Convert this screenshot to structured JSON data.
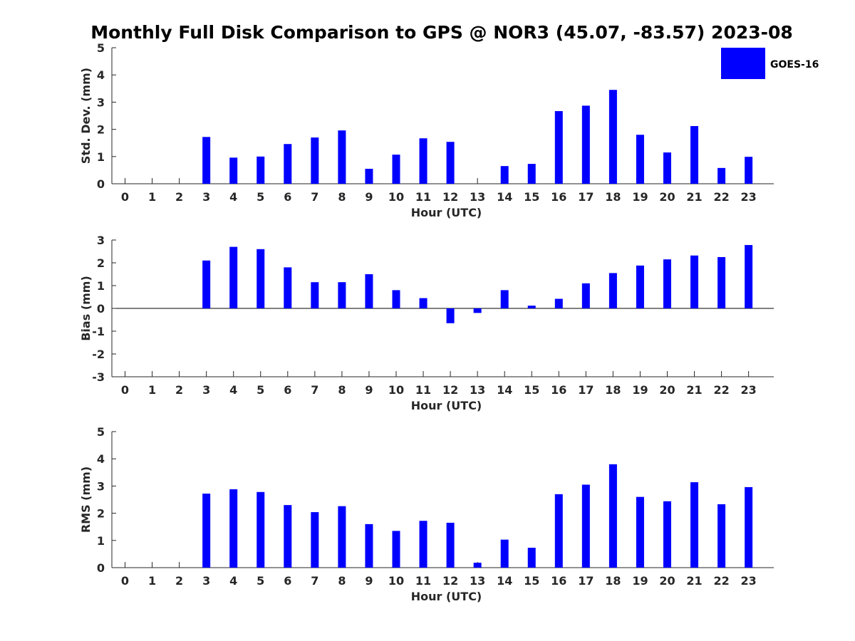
{
  "figure": {
    "title": "Monthly Full Disk Comparison to GPS @ NOR3 (45.07, -83.57) 2023-08"
  },
  "legend": {
    "label": "GOES-16",
    "color": "#0000ff",
    "position": "top-right"
  },
  "chart_data": [
    {
      "type": "bar",
      "name": "std-dev",
      "xlabel": "Hour (UTC)",
      "ylabel": "Std. Dev. (mm)",
      "ylim": [
        0,
        5
      ],
      "yticks": [
        0,
        1,
        2,
        3,
        4,
        5
      ],
      "categories": [
        "0",
        "1",
        "2",
        "3",
        "4",
        "5",
        "6",
        "7",
        "8",
        "9",
        "10",
        "11",
        "12",
        "13",
        "14",
        "15",
        "16",
        "17",
        "18",
        "19",
        "20",
        "21",
        "22",
        "23"
      ],
      "series": [
        {
          "name": "GOES-16",
          "color": "#0000ff",
          "values": [
            null,
            null,
            null,
            1.72,
            0.96,
            1.0,
            1.46,
            1.7,
            1.96,
            0.55,
            1.07,
            1.67,
            1.54,
            null,
            0.65,
            0.73,
            2.67,
            2.87,
            3.45,
            1.8,
            1.15,
            2.12,
            0.58,
            0.99
          ]
        }
      ]
    },
    {
      "type": "bar",
      "name": "bias",
      "xlabel": "Hour (UTC)",
      "ylabel": "Bias (mm)",
      "ylim": [
        -3,
        3
      ],
      "yticks": [
        -3,
        -2,
        -1,
        0,
        1,
        2,
        3
      ],
      "categories": [
        "0",
        "1",
        "2",
        "3",
        "4",
        "5",
        "6",
        "7",
        "8",
        "9",
        "10",
        "11",
        "12",
        "13",
        "14",
        "15",
        "16",
        "17",
        "18",
        "19",
        "20",
        "21",
        "22",
        "23"
      ],
      "series": [
        {
          "name": "GOES-16",
          "color": "#0000ff",
          "values": [
            null,
            null,
            null,
            2.1,
            2.7,
            2.6,
            1.8,
            1.15,
            1.15,
            1.5,
            0.8,
            0.45,
            -0.65,
            -0.2,
            0.8,
            0.12,
            0.42,
            1.1,
            1.55,
            1.88,
            2.15,
            2.32,
            2.25,
            2.78
          ]
        }
      ]
    },
    {
      "type": "bar",
      "name": "rms",
      "xlabel": "Hour (UTC)",
      "ylabel": "RMS (mm)",
      "ylim": [
        0,
        5
      ],
      "yticks": [
        0,
        1,
        2,
        3,
        4,
        5
      ],
      "categories": [
        "0",
        "1",
        "2",
        "3",
        "4",
        "5",
        "6",
        "7",
        "8",
        "9",
        "10",
        "11",
        "12",
        "13",
        "14",
        "15",
        "16",
        "17",
        "18",
        "19",
        "20",
        "21",
        "22",
        "23"
      ],
      "series": [
        {
          "name": "GOES-16",
          "color": "#0000ff",
          "values": [
            null,
            null,
            null,
            2.72,
            2.88,
            2.78,
            2.3,
            2.04,
            2.26,
            1.6,
            1.35,
            1.72,
            1.65,
            0.18,
            1.03,
            0.73,
            2.7,
            3.05,
            3.8,
            2.6,
            2.44,
            3.14,
            2.33,
            2.96
          ]
        }
      ]
    }
  ]
}
